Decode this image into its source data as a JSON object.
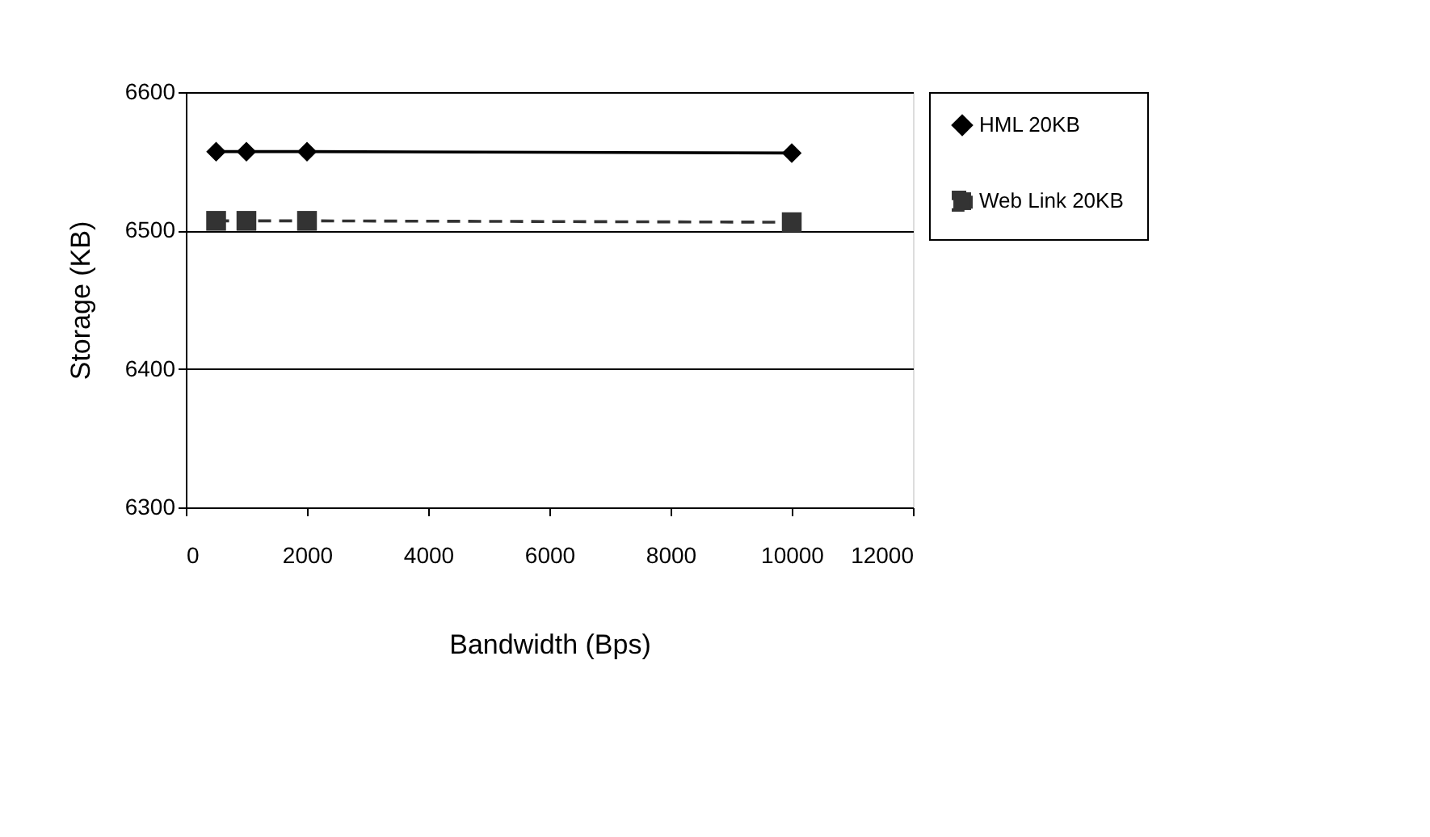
{
  "chart_data": {
    "type": "line",
    "xlabel": "Bandwidth (Bps)",
    "ylabel": "Storage (KB)",
    "x": [
      500,
      1000,
      2000,
      10000
    ],
    "series": [
      {
        "name": "HML 20KB",
        "color": "#000000",
        "values": [
          6557,
          6557,
          6557,
          6556
        ],
        "marker": "diamond",
        "line_style": "solid"
      },
      {
        "name": "Web Link 20KB",
        "color": "#333333",
        "values": [
          6507,
          6507,
          6507,
          6506
        ],
        "marker": "square",
        "line_style": "dashed"
      }
    ],
    "xlim": [
      0,
      12000
    ],
    "xticks": [
      0,
      2000,
      4000,
      6000,
      8000,
      10000,
      12000
    ],
    "ylim": [
      6300,
      6600
    ],
    "yticks": [
      6300,
      6400,
      6500,
      6600
    ],
    "grid": "y",
    "legend": "right"
  }
}
